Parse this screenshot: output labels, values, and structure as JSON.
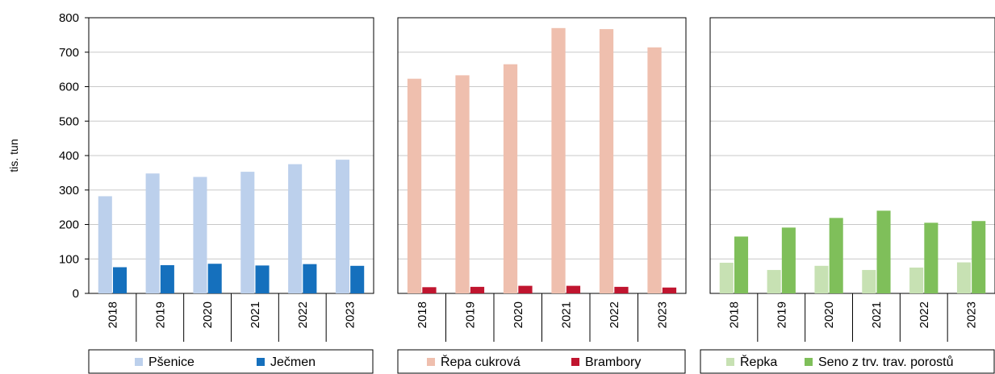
{
  "chart_data": [
    {
      "type": "bar",
      "categories": [
        "2018",
        "2019",
        "2020",
        "2021",
        "2022",
        "2023"
      ],
      "series": [
        {
          "name": "Pšenice",
          "color": "#bcd0ec",
          "values": [
            282,
            348,
            338,
            353,
            375,
            388
          ]
        },
        {
          "name": "Ječmen",
          "color": "#1570bd",
          "values": [
            76,
            82,
            86,
            81,
            85,
            80
          ]
        }
      ],
      "ylabel": "tis. tun",
      "ylim": [
        0,
        800
      ],
      "yticks": [
        0,
        100,
        200,
        300,
        400,
        500,
        600,
        700,
        800
      ],
      "grid": true,
      "legend": "bottom"
    },
    {
      "type": "bar",
      "categories": [
        "2018",
        "2019",
        "2020",
        "2021",
        "2022",
        "2023"
      ],
      "series": [
        {
          "name": "Řepa cukrová",
          "color": "#efbfae",
          "values": [
            623,
            633,
            665,
            770,
            767,
            714
          ]
        },
        {
          "name": "Brambory",
          "color": "#c0152f",
          "values": [
            18,
            19,
            22,
            22,
            19,
            17
          ]
        }
      ],
      "ylim": [
        0,
        800
      ],
      "grid": true,
      "legend": "bottom"
    },
    {
      "type": "bar",
      "categories": [
        "2018",
        "2019",
        "2020",
        "2021",
        "2022",
        "2023"
      ],
      "series": [
        {
          "name": "Řepka",
          "color": "#c7e1b3",
          "values": [
            89,
            68,
            80,
            68,
            75,
            90
          ]
        },
        {
          "name": "Seno z trv. trav. porostů",
          "color": "#7fbf5a",
          "values": [
            165,
            191,
            219,
            240,
            205,
            210
          ]
        }
      ],
      "ylim": [
        0,
        800
      ],
      "grid": true,
      "legend": "bottom"
    }
  ]
}
